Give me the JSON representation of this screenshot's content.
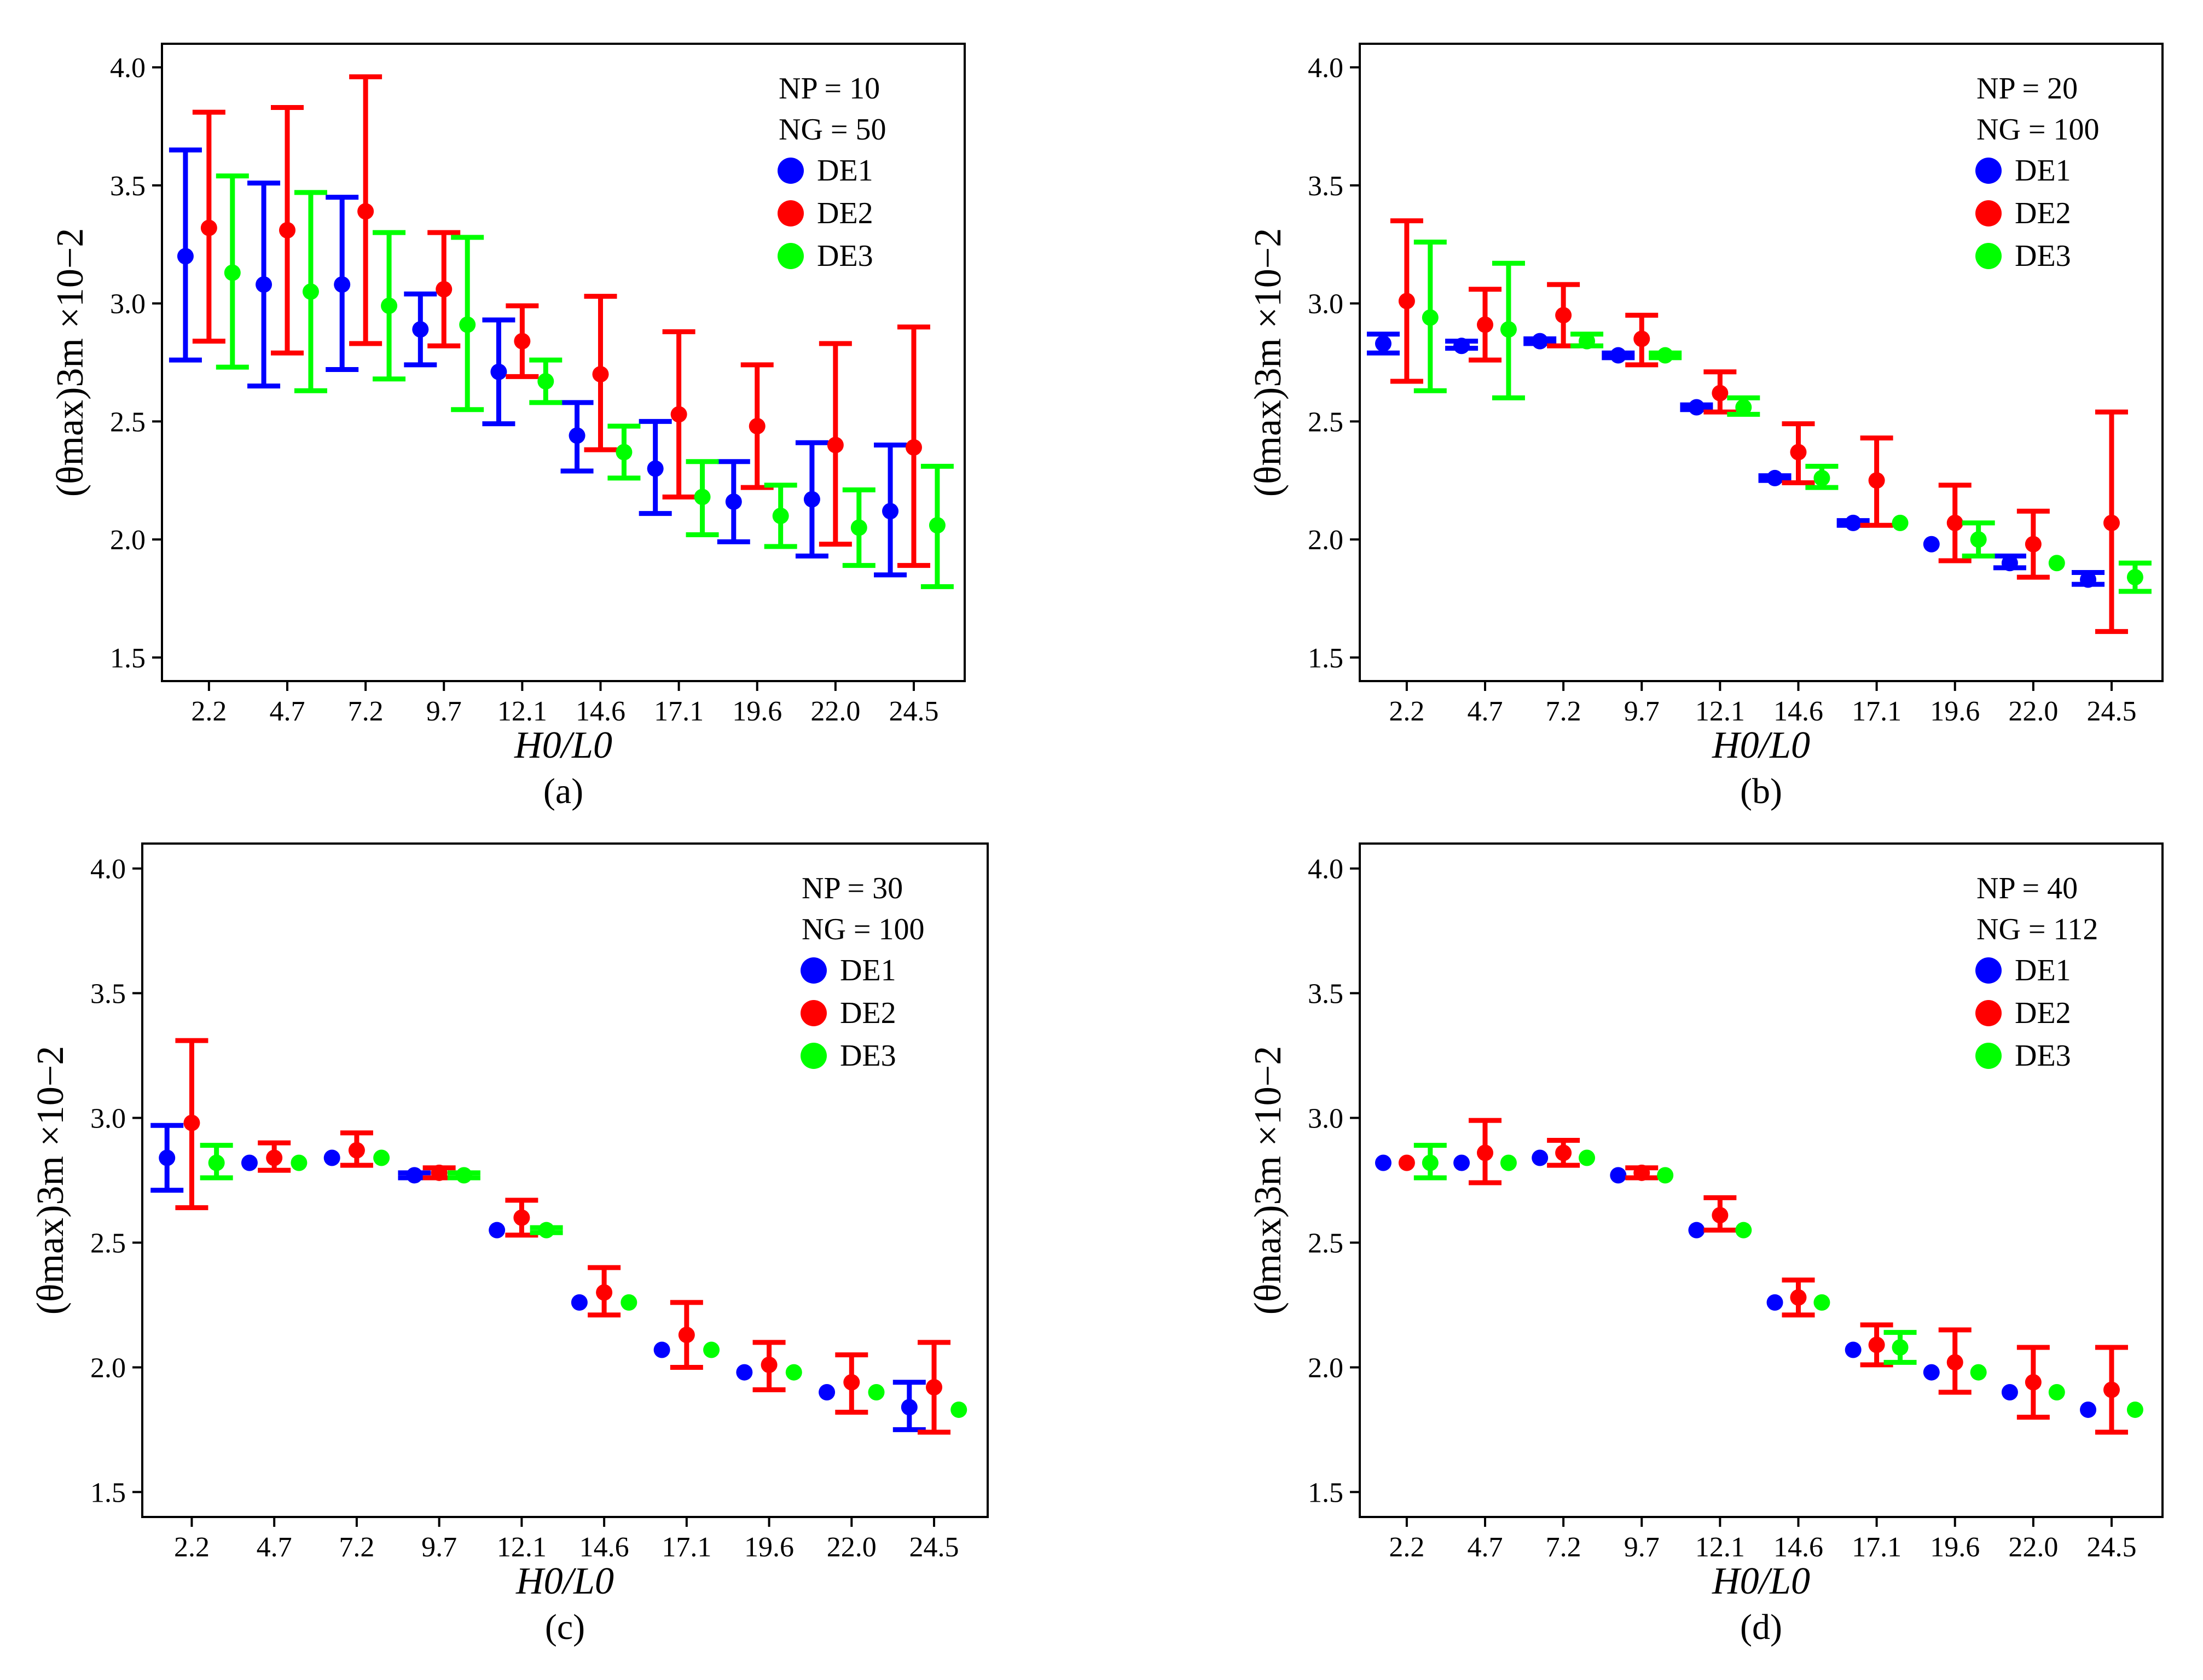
{
  "chart_data": [
    {
      "type": "scatter",
      "panel_label": "(a)",
      "xlabel": "H0/L0",
      "ylabel": "(θmax)3m ×10−2",
      "categories": [
        "2.2",
        "4.7",
        "7.2",
        "9.7",
        "12.1",
        "14.6",
        "17.1",
        "19.6",
        "22.0",
        "24.5"
      ],
      "ylim": [
        1.4,
        4.1
      ],
      "yticks": [
        "1.5",
        "2.0",
        "2.5",
        "3.0",
        "3.5",
        "4.0"
      ],
      "grid": false,
      "legend_position": "top-right",
      "annotations": [
        "NP = 10",
        "NG = 50"
      ],
      "series": [
        {
          "name": "DE1",
          "color": "#0000ff",
          "mean": [
            3.2,
            3.08,
            3.08,
            2.89,
            2.71,
            2.44,
            2.3,
            2.16,
            2.17,
            2.12
          ],
          "lower": [
            2.76,
            2.65,
            2.72,
            2.74,
            2.49,
            2.29,
            2.11,
            1.99,
            1.93,
            1.85
          ],
          "upper": [
            3.65,
            3.51,
            3.45,
            3.04,
            2.93,
            2.58,
            2.5,
            2.33,
            2.41,
            2.4
          ]
        },
        {
          "name": "DE2",
          "color": "#ff0000",
          "mean": [
            3.32,
            3.31,
            3.39,
            3.06,
            2.84,
            2.7,
            2.53,
            2.48,
            2.4,
            2.39
          ],
          "lower": [
            2.84,
            2.79,
            2.83,
            2.82,
            2.69,
            2.38,
            2.18,
            2.22,
            1.98,
            1.89
          ],
          "upper": [
            3.81,
            3.83,
            3.96,
            3.3,
            2.99,
            3.03,
            2.88,
            2.74,
            2.83,
            2.9
          ]
        },
        {
          "name": "DE3",
          "color": "#00ff00",
          "mean": [
            3.13,
            3.05,
            2.99,
            2.91,
            2.67,
            2.37,
            2.18,
            2.1,
            2.05,
            2.06
          ],
          "lower": [
            2.73,
            2.63,
            2.68,
            2.55,
            2.58,
            2.26,
            2.02,
            1.97,
            1.89,
            1.8
          ],
          "upper": [
            3.54,
            3.47,
            3.3,
            3.28,
            2.76,
            2.48,
            2.33,
            2.23,
            2.21,
            2.31
          ]
        }
      ]
    },
    {
      "type": "scatter",
      "panel_label": "(b)",
      "xlabel": "H0/L0",
      "ylabel": "(θmax)3m ×10−2",
      "categories": [
        "2.2",
        "4.7",
        "7.2",
        "9.7",
        "12.1",
        "14.6",
        "17.1",
        "19.6",
        "22.0",
        "24.5"
      ],
      "ylim": [
        1.4,
        4.1
      ],
      "yticks": [
        "1.5",
        "2.0",
        "2.5",
        "3.0",
        "3.5",
        "4.0"
      ],
      "grid": false,
      "legend_position": "top-right",
      "annotations": [
        "NP = 20",
        "NG = 100"
      ],
      "series": [
        {
          "name": "DE1",
          "color": "#0000ff",
          "mean": [
            2.83,
            2.82,
            2.84,
            2.78,
            2.56,
            2.26,
            2.07,
            1.98,
            1.9,
            1.83
          ],
          "lower": [
            2.79,
            2.81,
            2.83,
            2.77,
            2.55,
            2.25,
            2.06,
            1.98,
            1.88,
            1.81
          ],
          "upper": [
            2.87,
            2.84,
            2.85,
            2.79,
            2.57,
            2.27,
            2.08,
            1.98,
            1.93,
            1.86
          ]
        },
        {
          "name": "DE2",
          "color": "#ff0000",
          "mean": [
            3.01,
            2.91,
            2.95,
            2.85,
            2.62,
            2.37,
            2.25,
            2.07,
            1.98,
            2.07
          ],
          "lower": [
            2.67,
            2.76,
            2.82,
            2.74,
            2.54,
            2.24,
            2.06,
            1.91,
            1.84,
            1.61
          ],
          "upper": [
            3.35,
            3.06,
            3.08,
            2.95,
            2.71,
            2.49,
            2.43,
            2.23,
            2.12,
            2.54
          ]
        },
        {
          "name": "DE3",
          "color": "#00ff00",
          "mean": [
            2.94,
            2.89,
            2.84,
            2.78,
            2.56,
            2.26,
            2.07,
            2.0,
            1.9,
            1.84
          ],
          "lower": [
            2.63,
            2.6,
            2.82,
            2.77,
            2.53,
            2.22,
            2.07,
            1.93,
            1.9,
            1.78
          ],
          "upper": [
            3.26,
            3.17,
            2.87,
            2.79,
            2.6,
            2.31,
            2.07,
            2.07,
            1.9,
            1.9
          ]
        }
      ]
    },
    {
      "type": "scatter",
      "panel_label": "(c)",
      "xlabel": "H0/L0",
      "ylabel": "(θmax)3m ×10−2",
      "categories": [
        "2.2",
        "4.7",
        "7.2",
        "9.7",
        "12.1",
        "14.6",
        "17.1",
        "19.6",
        "22.0",
        "24.5"
      ],
      "ylim": [
        1.4,
        4.1
      ],
      "yticks": [
        "1.5",
        "2.0",
        "2.5",
        "3.0",
        "3.5",
        "4.0"
      ],
      "grid": false,
      "legend_position": "top-right",
      "annotations": [
        "NP = 30",
        "NG = 100"
      ],
      "series": [
        {
          "name": "DE1",
          "color": "#0000ff",
          "mean": [
            2.84,
            2.82,
            2.84,
            2.77,
            2.55,
            2.26,
            2.07,
            1.98,
            1.9,
            1.84
          ],
          "lower": [
            2.71,
            2.82,
            2.84,
            2.76,
            2.55,
            2.26,
            2.07,
            1.98,
            1.9,
            1.75
          ],
          "upper": [
            2.97,
            2.82,
            2.84,
            2.78,
            2.55,
            2.26,
            2.07,
            1.98,
            1.9,
            1.94
          ]
        },
        {
          "name": "DE2",
          "color": "#ff0000",
          "mean": [
            2.98,
            2.84,
            2.87,
            2.78,
            2.6,
            2.3,
            2.13,
            2.01,
            1.94,
            1.92
          ],
          "lower": [
            2.64,
            2.79,
            2.81,
            2.76,
            2.53,
            2.21,
            2.0,
            1.91,
            1.82,
            1.74
          ],
          "upper": [
            3.31,
            2.9,
            2.94,
            2.8,
            2.67,
            2.4,
            2.26,
            2.1,
            2.05,
            2.1
          ]
        },
        {
          "name": "DE3",
          "color": "#00ff00",
          "mean": [
            2.82,
            2.82,
            2.84,
            2.77,
            2.55,
            2.26,
            2.07,
            1.98,
            1.9,
            1.83
          ],
          "lower": [
            2.76,
            2.82,
            2.84,
            2.76,
            2.54,
            2.26,
            2.07,
            1.98,
            1.9,
            1.83
          ],
          "upper": [
            2.89,
            2.82,
            2.84,
            2.78,
            2.56,
            2.26,
            2.07,
            1.98,
            1.9,
            1.83
          ]
        }
      ]
    },
    {
      "type": "scatter",
      "panel_label": "(d)",
      "xlabel": "H0/L0",
      "ylabel": "(θmax)3m ×10−2",
      "categories": [
        "2.2",
        "4.7",
        "7.2",
        "9.7",
        "12.1",
        "14.6",
        "17.1",
        "19.6",
        "22.0",
        "24.5"
      ],
      "ylim": [
        1.4,
        4.1
      ],
      "yticks": [
        "1.5",
        "2.0",
        "2.5",
        "3.0",
        "3.5",
        "4.0"
      ],
      "grid": false,
      "legend_position": "top-right",
      "annotations": [
        "NP = 40",
        "NG = 112"
      ],
      "series": [
        {
          "name": "DE1",
          "color": "#0000ff",
          "mean": [
            2.82,
            2.82,
            2.84,
            2.77,
            2.55,
            2.26,
            2.07,
            1.98,
            1.9,
            1.83
          ],
          "lower": [
            2.82,
            2.82,
            2.84,
            2.77,
            2.55,
            2.26,
            2.07,
            1.98,
            1.9,
            1.83
          ],
          "upper": [
            2.82,
            2.82,
            2.84,
            2.77,
            2.55,
            2.26,
            2.07,
            1.98,
            1.9,
            1.83
          ]
        },
        {
          "name": "DE2",
          "color": "#ff0000",
          "mean": [
            2.82,
            2.86,
            2.86,
            2.78,
            2.61,
            2.28,
            2.09,
            2.02,
            1.94,
            1.91
          ],
          "lower": [
            2.82,
            2.74,
            2.81,
            2.76,
            2.55,
            2.21,
            2.01,
            1.9,
            1.8,
            1.74
          ],
          "upper": [
            2.82,
            2.99,
            2.91,
            2.8,
            2.68,
            2.35,
            2.17,
            2.15,
            2.08,
            2.08
          ]
        },
        {
          "name": "DE3",
          "color": "#00ff00",
          "mean": [
            2.82,
            2.82,
            2.84,
            2.77,
            2.55,
            2.26,
            2.08,
            1.98,
            1.9,
            1.83
          ],
          "lower": [
            2.76,
            2.82,
            2.84,
            2.77,
            2.55,
            2.26,
            2.02,
            1.98,
            1.9,
            1.83
          ],
          "upper": [
            2.89,
            2.82,
            2.84,
            2.77,
            2.55,
            2.26,
            2.14,
            1.98,
            1.9,
            1.83
          ]
        }
      ]
    }
  ]
}
